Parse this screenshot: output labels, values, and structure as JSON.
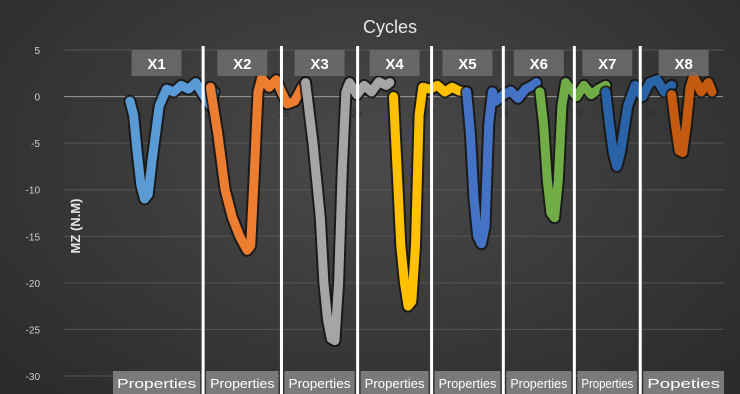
{
  "chart_data": {
    "type": "line",
    "title": "Cycles",
    "xlabel": "",
    "ylabel": "MZ (N.M)",
    "xlim": [
      22,
      31
    ],
    "ylim": [
      -30,
      5
    ],
    "x_ticks": [
      22,
      23,
      24,
      25,
      26,
      27,
      28,
      29,
      30,
      31
    ],
    "y_ticks": [
      5,
      0,
      -5,
      -10,
      -15,
      -20,
      -25,
      -30
    ],
    "grid": true,
    "boundaries": [
      23.9,
      24.97,
      26.01,
      27.02,
      28.0,
      28.97,
      29.87
    ],
    "segments": [
      {
        "label": "X1",
        "footer": "Properties",
        "color": "#5b9bd5",
        "x": [
          22.9,
          22.95,
          23.0,
          23.05,
          23.1,
          23.15,
          23.2,
          23.3,
          23.4,
          23.5,
          23.6,
          23.7,
          23.8,
          23.9,
          24.0,
          24.05
        ],
        "y": [
          -0.5,
          -2,
          -6,
          -9.5,
          -11,
          -10.5,
          -7,
          -1,
          0.8,
          0.5,
          1.2,
          0.8,
          1.5,
          0.2,
          -1,
          0.5
        ]
      },
      {
        "label": "X2",
        "footer": "Properties",
        "color": "#ed7d31",
        "x": [
          24.0,
          24.1,
          24.2,
          24.3,
          24.4,
          24.5,
          24.55,
          24.6,
          24.65,
          24.7,
          24.8,
          24.9,
          24.97,
          25.05,
          25.15,
          25.25,
          25.3
        ],
        "y": [
          1,
          -4,
          -10,
          -13,
          -15,
          -16.5,
          -16,
          -8,
          0.5,
          2,
          1,
          1.8,
          0.5,
          -0.8,
          -0.5,
          1,
          1.5
        ]
      },
      {
        "label": "X3",
        "footer": "Properties",
        "color": "#a5a5a5",
        "x": [
          25.3,
          25.4,
          25.5,
          25.55,
          25.6,
          25.65,
          25.7,
          25.75,
          25.8,
          25.85,
          25.9,
          26.0,
          26.1,
          26.2,
          26.3,
          26.4,
          26.45
        ],
        "y": [
          1.5,
          -5,
          -13,
          -20,
          -24,
          -26,
          -26.2,
          -20,
          -8,
          0.5,
          1.5,
          0.2,
          1.2,
          0.5,
          1.6,
          1.2,
          1.5
        ]
      },
      {
        "label": "X4",
        "footer": "Properties",
        "color": "#ffc000",
        "x": [
          26.5,
          26.55,
          26.6,
          26.65,
          26.7,
          26.75,
          26.8,
          26.85,
          26.9,
          27.0,
          27.1,
          27.2,
          27.3,
          27.4,
          27.5
        ],
        "y": [
          0,
          -8,
          -16,
          -20,
          -22.5,
          -22,
          -16,
          -2,
          1,
          0.8,
          1.2,
          0.5,
          1,
          0.6,
          0.5
        ]
      },
      {
        "label": "X5",
        "footer": "Properties",
        "color": "#4472c4",
        "x": [
          27.5,
          27.55,
          27.6,
          27.65,
          27.7,
          27.75,
          27.8,
          27.85,
          27.9,
          28.0,
          28.1,
          28.2,
          28.3,
          28.4,
          28.45
        ],
        "y": [
          0.5,
          -4,
          -11,
          -15,
          -15.8,
          -14,
          -3,
          0.5,
          -0.5,
          0.2,
          0.6,
          -0.2,
          0.8,
          1.2,
          1.5
        ]
      },
      {
        "label": "X6",
        "footer": "Properties",
        "color": "#70ad47",
        "x": [
          28.5,
          28.55,
          28.6,
          28.65,
          28.7,
          28.75,
          28.8,
          28.85,
          28.9,
          29.0,
          29.1,
          29.2,
          29.3,
          29.4
        ],
        "y": [
          0.5,
          -3,
          -9,
          -12.5,
          -13,
          -9,
          -1,
          1.5,
          1,
          0,
          1.2,
          0.2,
          0.8,
          1.2
        ]
      },
      {
        "label": "X7",
        "footer": "Properties",
        "color": "#2a64a8",
        "x": [
          29.4,
          29.45,
          29.5,
          29.55,
          29.6,
          29.7,
          29.8,
          29.9,
          30.0,
          30.1,
          30.2,
          30.3
        ],
        "y": [
          0.5,
          -3,
          -6,
          -7.5,
          -6,
          -1,
          1.2,
          0,
          1.5,
          1.8,
          0.5,
          1.2
        ]
      },
      {
        "label": "X8",
        "footer": "Popeties",
        "color": "#c55a11",
        "x": [
          30.3,
          30.35,
          30.4,
          30.45,
          30.5,
          30.55,
          30.6,
          30.7,
          30.8,
          30.85
        ],
        "y": [
          0.2,
          -3,
          -5.8,
          -6,
          -3,
          1,
          2.2,
          0.5,
          1.5,
          0.5
        ]
      }
    ]
  }
}
